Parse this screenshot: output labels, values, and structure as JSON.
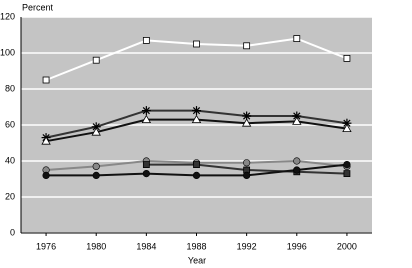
{
  "chart_data": {
    "type": "line",
    "y_axis_label": "Percent",
    "x_axis_label": "Year",
    "x": [
      1976,
      1980,
      1984,
      1988,
      1992,
      1996,
      2000
    ],
    "xlim": [
      1974,
      2002
    ],
    "xticks": [
      1976,
      1980,
      1984,
      1988,
      1992,
      1996,
      2000
    ],
    "ylim": [
      0,
      120
    ],
    "yticks": [
      0,
      20,
      40,
      60,
      80,
      100,
      120
    ],
    "grid": true,
    "background": "#c4c4c4",
    "series": [
      {
        "color": "#ffffff",
        "marker": "square",
        "values": [
          85,
          96,
          107,
          105,
          104,
          108,
          97
        ]
      },
      {
        "color": "#333333",
        "marker": "asterisk",
        "values": [
          53,
          59,
          68,
          68,
          65,
          65,
          61
        ]
      },
      {
        "color": "#111111",
        "marker": "triangle",
        "values": [
          51,
          56,
          63,
          63,
          61,
          62,
          58
        ]
      },
      {
        "color": "#888888",
        "marker": "circle",
        "values": [
          35,
          37,
          40,
          39,
          39,
          40,
          37
        ]
      },
      {
        "color": "#333333",
        "marker": "square",
        "values": [
          null,
          null,
          38,
          38,
          35,
          34,
          33
        ]
      },
      {
        "color": "#111111",
        "marker": "circle",
        "values": [
          32,
          32,
          33,
          32,
          32,
          35,
          38
        ]
      }
    ]
  }
}
